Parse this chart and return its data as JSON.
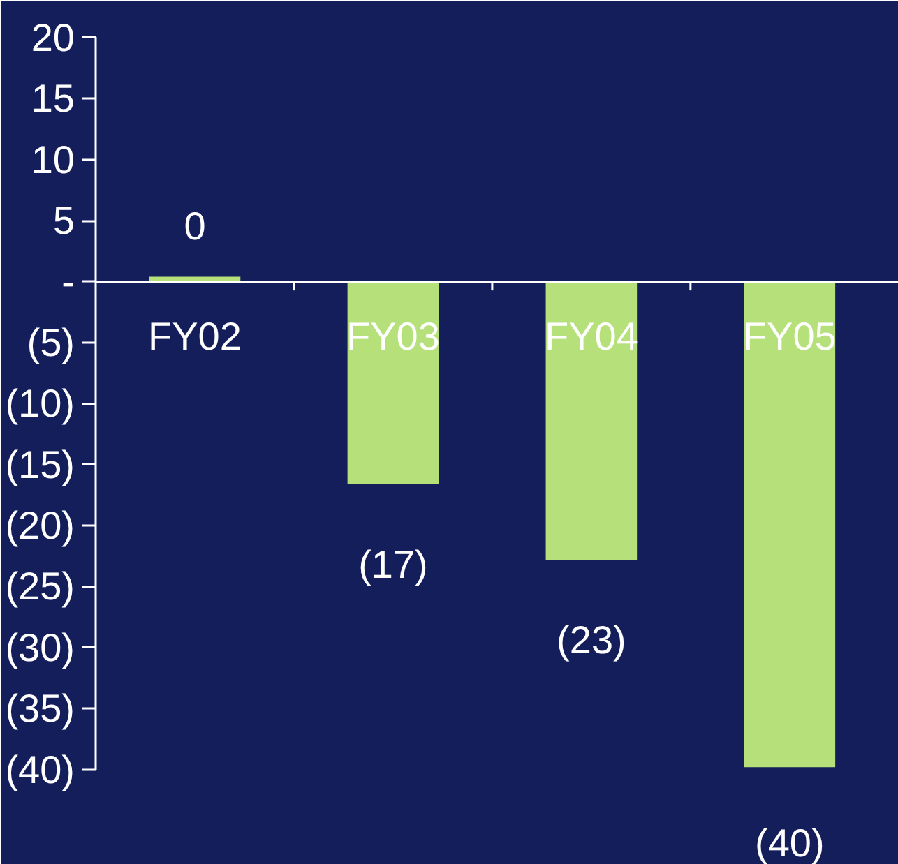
{
  "chart_data": {
    "type": "bar",
    "categories": [
      "FY02",
      "FY03",
      "FY04",
      "FY05"
    ],
    "values": [
      0.4,
      -16.6,
      -22.8,
      -39.8
    ],
    "value_labels": [
      "0",
      "(17)",
      "(23)",
      "(40)"
    ],
    "color": "#b5e07a",
    "ylim": [
      -40,
      20
    ],
    "yticks": [
      20,
      15,
      10,
      5,
      {
        "value": 0,
        "label": "-"
      },
      {
        "value": -5,
        "label": "(5)"
      },
      {
        "value": -10,
        "label": "(10)"
      },
      {
        "value": -15,
        "label": "(15)"
      },
      {
        "value": -20,
        "label": "(20)"
      },
      {
        "value": -25,
        "label": "(25)"
      },
      {
        "value": -30,
        "label": "(30)"
      },
      {
        "value": -35,
        "label": "(35)"
      },
      {
        "value": -40,
        "label": "(40)"
      }
    ],
    "grid": false
  }
}
